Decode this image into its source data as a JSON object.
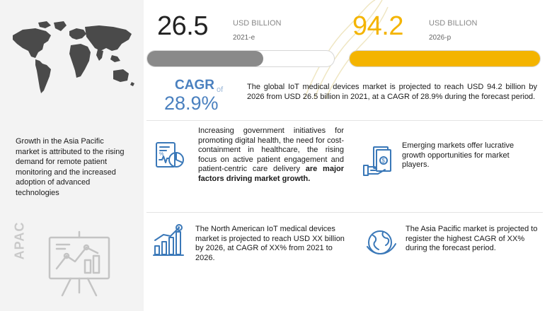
{
  "left_panel": {
    "asia_text": "Growth in the Asia Pacific market is attributed to the rising demand for remote patient monitoring and the increased adoption of advanced technologies",
    "region_label": "APAC",
    "icons": {
      "map": "world-map-icon",
      "presentation": "presentation-chart-icon"
    }
  },
  "metrics": {
    "start": {
      "value": "26.5",
      "unit": "USD BILLION",
      "year": "2021-e",
      "bar_fill": 0.62,
      "color": "#8a8a8a"
    },
    "end": {
      "value": "94.2",
      "unit": "USD BILLION",
      "year": "2026-p",
      "bar_fill": 1.0,
      "color": "#f4b400"
    }
  },
  "cagr": {
    "label": "CAGR",
    "of": "of",
    "value": "28.9%",
    "color": "#4a80bf"
  },
  "summary": "The global IoT medical devices market is projected to reach USD 94.2 billion by 2026 from USD 26.5 billion in 2021, at a CAGR of 28.9% during the forecast period.",
  "cards": {
    "government": {
      "text_regular": "Increasing government initiatives for promoting digital health, the need for cost-containment in healthcare, the rising focus on active patient engagement and patient-centric care delivery ",
      "text_bold": "are major factors driving market growth.",
      "icon": "healthcare-report-icon"
    },
    "emerging": {
      "text": "Emerging markets offer lucrative growth opportunities for market players.",
      "icon": "money-hand-icon"
    },
    "north_america": {
      "text": "The North American IoT medical devices market is projected to reach USD XX billion by 2026, at CAGR of XX% from 2021 to 2026.",
      "icon": "growth-chart-icon"
    },
    "asia_pacific": {
      "text": "The Asia Pacific market is projected to register the highest CAGR of XX% during the forecast period.",
      "icon": "globe-icon"
    }
  }
}
